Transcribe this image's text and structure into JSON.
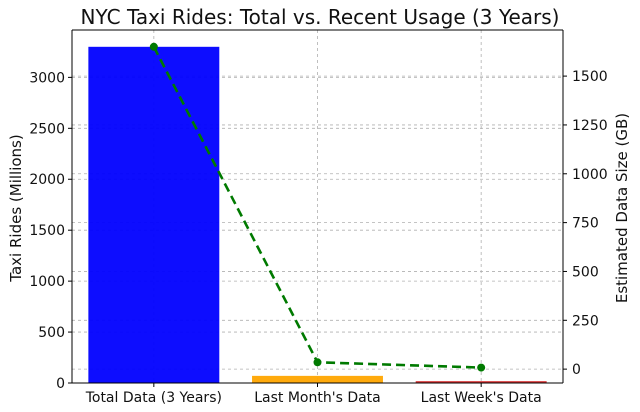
{
  "chart_data": {
    "type": "bar",
    "title": "NYC Taxi Rides: Total vs. Recent Usage (3 Years)",
    "categories": [
      "Total Data (3 Years)",
      "Last Month's Data",
      "Last Week's Data"
    ],
    "series": [
      {
        "name": "Taxi Rides (Millions)",
        "type": "bar",
        "axis": "left",
        "values": [
          3300,
          70,
          18
        ],
        "colors": [
          "#0000ff",
          "#ffa500",
          "#d62728"
        ]
      },
      {
        "name": "Estimated Data Size (GB)",
        "type": "line",
        "axis": "right",
        "values": [
          1650,
          35,
          8
        ],
        "color": "#007a00",
        "line_style": "dashed",
        "marker": "circle"
      }
    ],
    "y_left": {
      "label": "Taxi Rides (Millions)",
      "label_color": "#00008b",
      "ticks": [
        0,
        500,
        1000,
        1500,
        2000,
        2500,
        3000
      ],
      "ylim": [
        0,
        3465
      ]
    },
    "y_right": {
      "label": "Estimated Data Size (GB)",
      "label_color": "#007a00",
      "ticks": [
        0,
        250,
        500,
        750,
        1000,
        1250,
        1500
      ],
      "ylim": [
        -71,
        1736
      ]
    },
    "grid": true
  }
}
